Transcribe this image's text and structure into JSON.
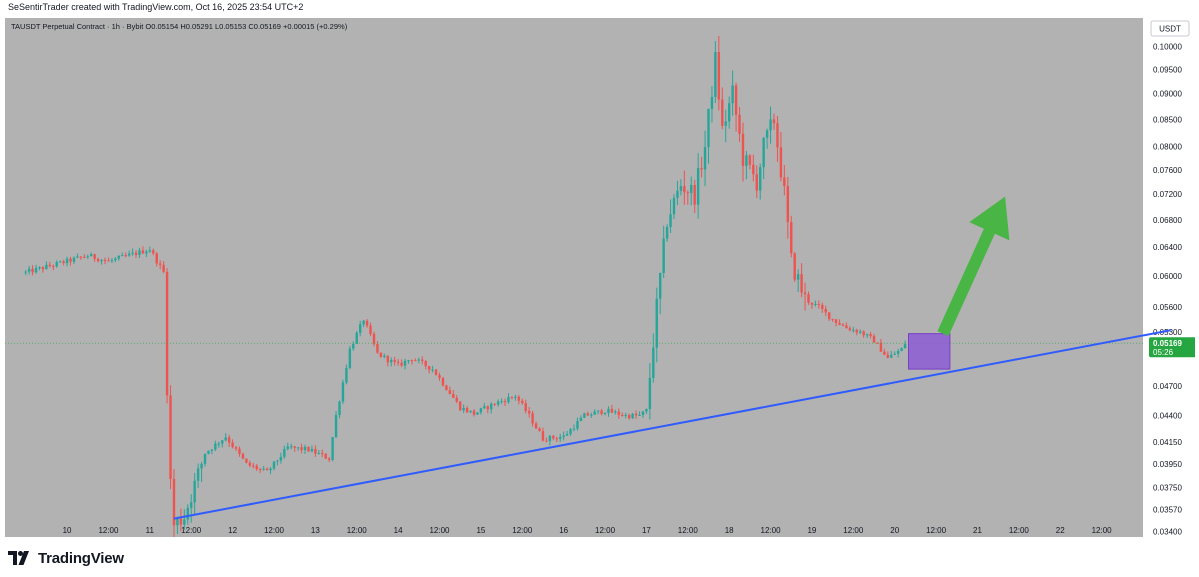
{
  "header": {
    "attribution": "SeSentirTrader created with TradingView.com, Oct 16, 2025 23:54 UTC+2"
  },
  "footer": {
    "brand": "TradingView",
    "logo_icon": "tradingview-logo-icon"
  },
  "chart_data": {
    "type": "candlestick",
    "title": "TAUSDT Perpetual Contract · 1h · Bybit  O0.05154  H0.05291  L0.05153  C0.05169  +0.00015 (+0.29%)",
    "currency_button": "USDT",
    "last_price": {
      "value": 0.05169,
      "label": "0.05169",
      "countdown": "05:26",
      "color": "#26a641"
    },
    "x_ticks": [
      "10",
      "12:00",
      "11",
      "12:00",
      "12",
      "12:00",
      "13",
      "12:00",
      "14",
      "12:00",
      "15",
      "12:00",
      "16",
      "12:00",
      "17",
      "12:00",
      "18",
      "12:00",
      "19",
      "12:00",
      "20",
      "12:00",
      "21",
      "12:00",
      "22",
      "12:00"
    ],
    "y_ticks": [
      "0.10000",
      "0.09500",
      "0.09000",
      "0.08500",
      "0.08000",
      "0.07600",
      "0.07200",
      "0.06800",
      "0.06400",
      "0.06000",
      "0.05600",
      "0.05300",
      "0.04700",
      "0.04400",
      "0.04150",
      "0.03950",
      "0.03750",
      "0.03570",
      "0.03400"
    ],
    "y_scale": "log",
    "y_range": [
      0.0336,
      0.1065
    ],
    "x_range_hours": [
      -18,
      312
    ],
    "hours_per_day": 24,
    "up_color": "#26a69a",
    "down_color": "#ef5350",
    "background": "#b2b2b2",
    "close_path": [
      [
        -12,
        0.0605
      ],
      [
        6,
        0.0628
      ],
      [
        12,
        0.062
      ],
      [
        24,
        0.0637
      ],
      [
        28,
        0.0605
      ],
      [
        29,
        0.047
      ],
      [
        30,
        0.038
      ],
      [
        31,
        0.0345
      ],
      [
        34,
        0.0352
      ],
      [
        40,
        0.0405
      ],
      [
        46,
        0.042
      ],
      [
        52,
        0.0395
      ],
      [
        58,
        0.0388
      ],
      [
        64,
        0.041
      ],
      [
        70,
        0.0408
      ],
      [
        76,
        0.04
      ],
      [
        78,
        0.044
      ],
      [
        82,
        0.051
      ],
      [
        86,
        0.0545
      ],
      [
        90,
        0.0505
      ],
      [
        96,
        0.0492
      ],
      [
        100,
        0.05
      ],
      [
        106,
        0.0488
      ],
      [
        110,
        0.0468
      ],
      [
        114,
        0.0448
      ],
      [
        118,
        0.0442
      ],
      [
        124,
        0.0452
      ],
      [
        130,
        0.046
      ],
      [
        134,
        0.044
      ],
      [
        138,
        0.0418
      ],
      [
        144,
        0.042
      ],
      [
        150,
        0.044
      ],
      [
        156,
        0.0445
      ],
      [
        162,
        0.044
      ],
      [
        166,
        0.044
      ],
      [
        168,
        0.0445
      ],
      [
        171,
        0.056
      ],
      [
        174,
        0.068
      ],
      [
        178,
        0.0735
      ],
      [
        182,
        0.072
      ],
      [
        185,
        0.08
      ],
      [
        188,
        0.097
      ],
      [
        190,
        0.083
      ],
      [
        193,
        0.09
      ],
      [
        196,
        0.078
      ],
      [
        200,
        0.074
      ],
      [
        202,
        0.08
      ],
      [
        205,
        0.085
      ],
      [
        208,
        0.072
      ],
      [
        210,
        0.062
      ],
      [
        214,
        0.057
      ],
      [
        218,
        0.056
      ],
      [
        222,
        0.0545
      ],
      [
        226,
        0.0535
      ],
      [
        230,
        0.053
      ],
      [
        234,
        0.052
      ],
      [
        238,
        0.05
      ],
      [
        242,
        0.051
      ],
      [
        243,
        0.05169
      ]
    ],
    "annotations": {
      "trendline": {
        "from": [
          31,
          0.035
        ],
        "to": [
          320,
          0.0532
        ],
        "color": "#2f5bff"
      },
      "box": {
        "x0": 244,
        "x1": 256,
        "y_top": 0.0528,
        "y_bottom": 0.0488,
        "fill": "#8a56d6",
        "stroke": "#7a3fc7"
      },
      "arrow": {
        "from": [
          254,
          0.0528
        ],
        "to": [
          272,
          0.0716
        ],
        "color": "#48b545"
      }
    }
  }
}
